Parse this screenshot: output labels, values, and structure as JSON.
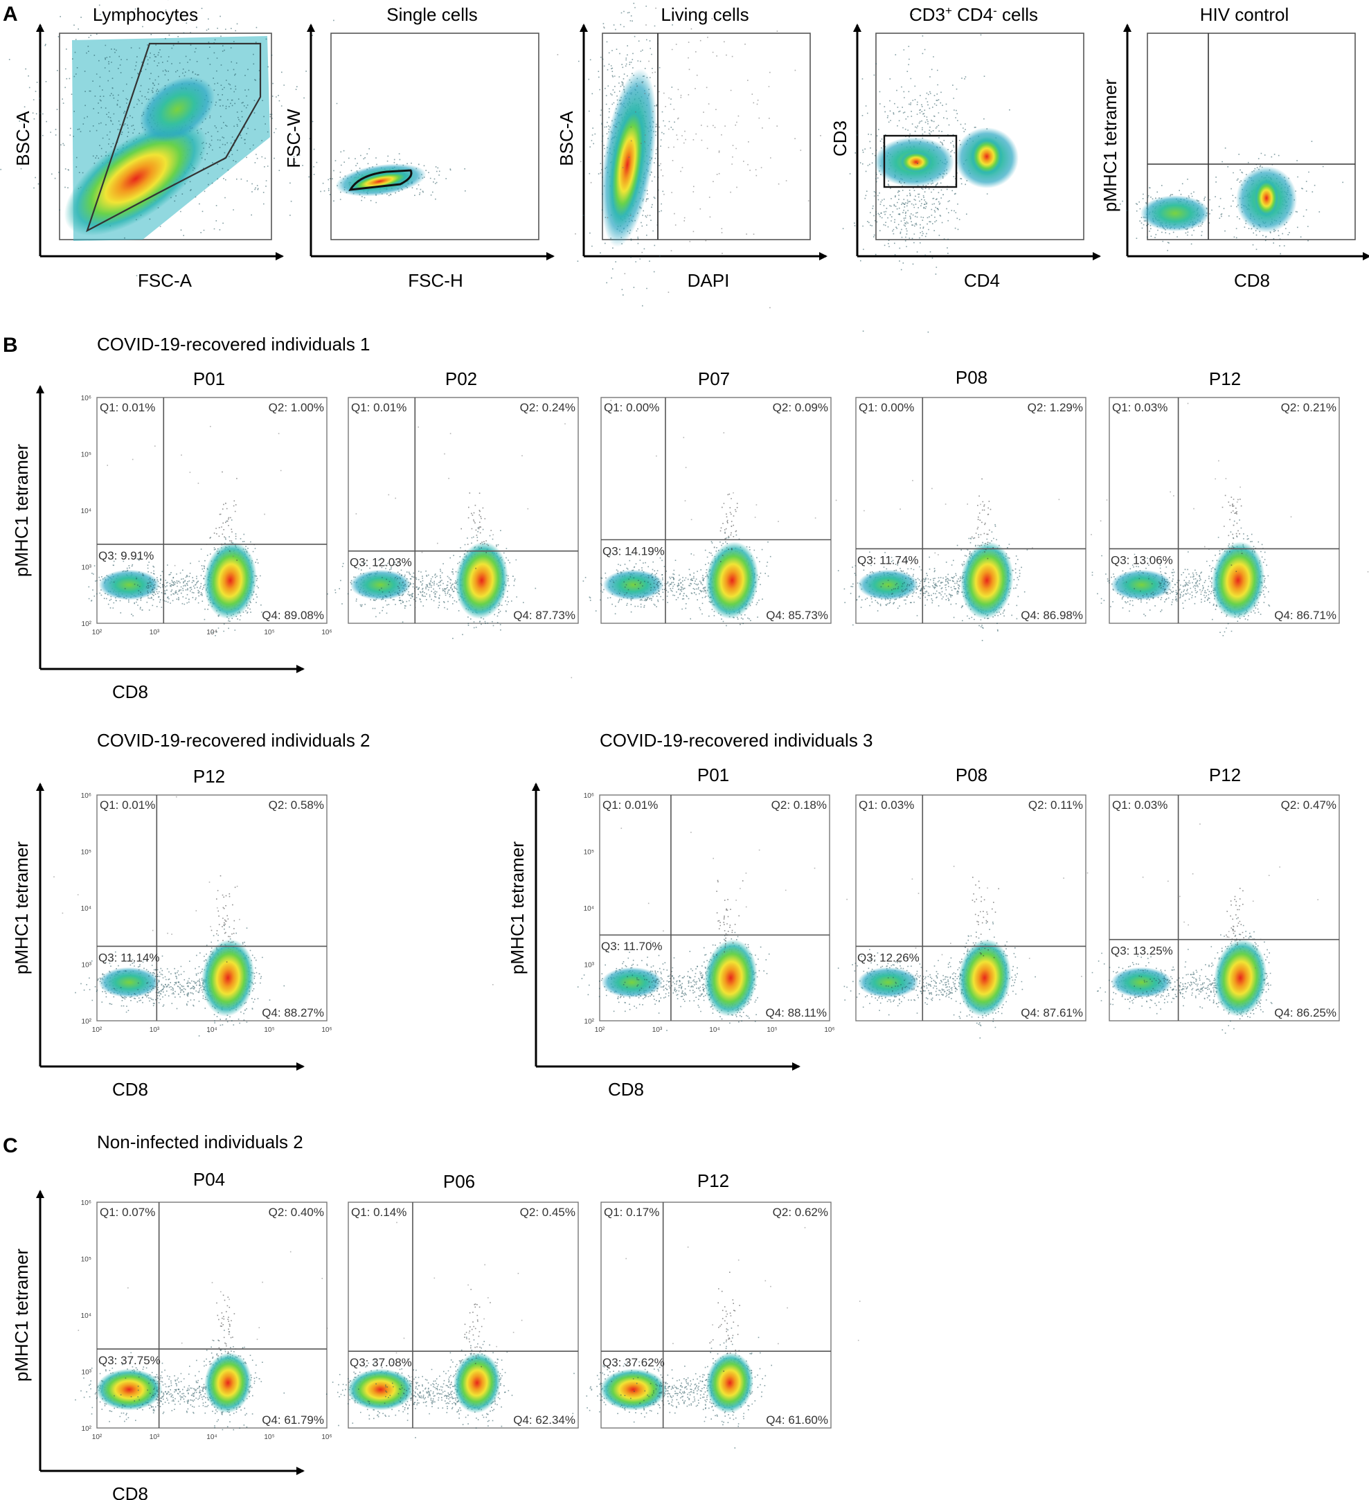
{
  "figure": {
    "panel_letters": [
      "A",
      "B",
      "C"
    ]
  },
  "chart_data": [
    {
      "type": "scatter",
      "subtype": "flow-cytometry-density",
      "panel": "A",
      "id": "lymph",
      "title": "Lymphocytes",
      "xlabel": "FSC-A",
      "ylabel": "BSC-A",
      "gate": "polygon",
      "gate_note": "lymphocyte gate"
    },
    {
      "type": "scatter",
      "subtype": "flow-cytometry-density",
      "panel": "A",
      "id": "single",
      "title": "Single cells",
      "xlabel": "FSC-H",
      "ylabel": "FSC-W",
      "gate": "polygon",
      "gate_note": "singlet gate"
    },
    {
      "type": "scatter",
      "subtype": "flow-cytometry-density",
      "panel": "A",
      "id": "living",
      "title": "Living cells",
      "xlabel": "DAPI",
      "ylabel": "BSC-A",
      "gate": "vertical-line",
      "gate_note": "DAPI negative cells"
    },
    {
      "type": "scatter",
      "subtype": "flow-cytometry-density",
      "panel": "A",
      "id": "cd3cd4",
      "title": "CD3+ CD4- cells",
      "title_main": "CD3",
      "title_sup1": "+",
      "title_mid": " CD4",
      "title_sup2": "-",
      "title_end": " cells",
      "xlabel": "CD4",
      "ylabel": "CD3",
      "gate": "rectangle",
      "gate_note": "CD3 positive CD4 negative gate"
    },
    {
      "type": "scatter",
      "subtype": "flow-cytometry-density",
      "panel": "A",
      "id": "hiv",
      "title": "HIV control",
      "xlabel": "CD8",
      "ylabel": "pMHC1 tetramer",
      "gate": "quadrant"
    },
    {
      "type": "scatter",
      "subtype": "flow-cytometry-quadrant",
      "panel": "B",
      "group": "COVID-19-recovered individuals 1",
      "title": "P01",
      "xlabel": "CD8",
      "ylabel": "pMHC1 tetramer",
      "axis": "log",
      "xlim": [
        100,
        1000000
      ],
      "ylim": [
        100,
        1000000
      ],
      "quadrants": {
        "Q1": "0.01%",
        "Q2": "1.00%",
        "Q3": "9.91%",
        "Q4": "89.08%"
      }
    },
    {
      "type": "scatter",
      "subtype": "flow-cytometry-quadrant",
      "panel": "B",
      "group": "COVID-19-recovered individuals 1",
      "title": "P02",
      "xlabel": "CD8",
      "ylabel": "pMHC1 tetramer",
      "axis": "log",
      "xlim": [
        100,
        1000000
      ],
      "ylim": [
        100,
        1000000
      ],
      "quadrants": {
        "Q1": "0.01%",
        "Q2": "0.24%",
        "Q3": "12.03%",
        "Q4": "87.73%"
      }
    },
    {
      "type": "scatter",
      "subtype": "flow-cytometry-quadrant",
      "panel": "B",
      "group": "COVID-19-recovered individuals 1",
      "title": "P07",
      "xlabel": "CD8",
      "ylabel": "pMHC1 tetramer",
      "axis": "log",
      "xlim": [
        100,
        1000000
      ],
      "ylim": [
        100,
        1000000
      ],
      "quadrants": {
        "Q1": "0.00%",
        "Q2": "0.09%",
        "Q3": "14.19%",
        "Q4": "85.73%"
      }
    },
    {
      "type": "scatter",
      "subtype": "flow-cytometry-quadrant",
      "panel": "B",
      "group": "COVID-19-recovered individuals 1",
      "title": "P08",
      "xlabel": "CD8",
      "ylabel": "pMHC1 tetramer",
      "axis": "log",
      "xlim": [
        100,
        1000000
      ],
      "ylim": [
        100,
        1000000
      ],
      "quadrants": {
        "Q1": "0.00%",
        "Q2": "1.29%",
        "Q3": "11.74%",
        "Q4": "86.98%"
      }
    },
    {
      "type": "scatter",
      "subtype": "flow-cytometry-quadrant",
      "panel": "B",
      "group": "COVID-19-recovered individuals 1",
      "title": "P12",
      "xlabel": "CD8",
      "ylabel": "pMHC1 tetramer",
      "axis": "log",
      "xlim": [
        100,
        1000000
      ],
      "ylim": [
        100,
        1000000
      ],
      "quadrants": {
        "Q1": "0.03%",
        "Q2": "0.21%",
        "Q3": "13.06%",
        "Q4": "86.71%"
      }
    },
    {
      "type": "scatter",
      "subtype": "flow-cytometry-quadrant",
      "panel": "B",
      "group": "COVID-19-recovered individuals 2",
      "title": "P12",
      "xlabel": "CD8",
      "ylabel": "pMHC1 tetramer",
      "axis": "log",
      "xlim": [
        100,
        1000000
      ],
      "ylim": [
        100,
        1000000
      ],
      "quadrants": {
        "Q1": "0.01%",
        "Q2": "0.58%",
        "Q3": "11.14%",
        "Q4": "88.27%"
      }
    },
    {
      "type": "scatter",
      "subtype": "flow-cytometry-quadrant",
      "panel": "B",
      "group": "COVID-19-recovered individuals 3",
      "title": "P01",
      "xlabel": "CD8",
      "ylabel": "pMHC1 tetramer",
      "axis": "log",
      "xlim": [
        100,
        1000000
      ],
      "ylim": [
        100,
        1000000
      ],
      "quadrants": {
        "Q1": "0.01%",
        "Q2": "0.18%",
        "Q3": "11.70%",
        "Q4": "88.11%"
      }
    },
    {
      "type": "scatter",
      "subtype": "flow-cytometry-quadrant",
      "panel": "B",
      "group": "COVID-19-recovered individuals 3",
      "title": "P08",
      "xlabel": "CD8",
      "ylabel": "pMHC1 tetramer",
      "axis": "log",
      "xlim": [
        100,
        1000000
      ],
      "ylim": [
        100,
        1000000
      ],
      "quadrants": {
        "Q1": "0.03%",
        "Q2": "0.11%",
        "Q3": "12.26%",
        "Q4": "87.61%"
      }
    },
    {
      "type": "scatter",
      "subtype": "flow-cytometry-quadrant",
      "panel": "B",
      "group": "COVID-19-recovered individuals 3",
      "title": "P12",
      "xlabel": "CD8",
      "ylabel": "pMHC1 tetramer",
      "axis": "log",
      "xlim": [
        100,
        1000000
      ],
      "ylim": [
        100,
        1000000
      ],
      "quadrants": {
        "Q1": "0.03%",
        "Q2": "0.47%",
        "Q3": "13.25%",
        "Q4": "86.25%"
      }
    },
    {
      "type": "scatter",
      "subtype": "flow-cytometry-quadrant",
      "panel": "C",
      "group": "Non-infected individuals 2",
      "title": "P04",
      "xlabel": "CD8",
      "ylabel": "pMHC1 tetramer",
      "axis": "log",
      "xlim": [
        100,
        1000000
      ],
      "ylim": [
        100,
        1000000
      ],
      "quadrants": {
        "Q1": "0.07%",
        "Q2": "0.40%",
        "Q3": "37.75%",
        "Q4": "61.79%"
      }
    },
    {
      "type": "scatter",
      "subtype": "flow-cytometry-quadrant",
      "panel": "C",
      "group": "Non-infected individuals 2",
      "title": "P06",
      "xlabel": "CD8",
      "ylabel": "pMHC1 tetramer",
      "axis": "log",
      "xlim": [
        100,
        1000000
      ],
      "ylim": [
        100,
        1000000
      ],
      "quadrants": {
        "Q1": "0.14%",
        "Q2": "0.45%",
        "Q3": "37.08%",
        "Q4": "62.34%"
      }
    },
    {
      "type": "scatter",
      "subtype": "flow-cytometry-quadrant",
      "panel": "C",
      "group": "Non-infected individuals 2",
      "title": "P12",
      "xlabel": "CD8",
      "ylabel": "pMHC1 tetramer",
      "axis": "log",
      "xlim": [
        100,
        1000000
      ],
      "ylim": [
        100,
        1000000
      ],
      "quadrants": {
        "Q1": "0.17%",
        "Q2": "0.62%",
        "Q3": "37.62%",
        "Q4": "61.60%"
      }
    }
  ],
  "tick_labels": {
    "x": [
      "10²",
      "10³",
      "10⁴",
      "10⁵",
      "10⁶"
    ],
    "y": [
      "10²",
      "10³",
      "10⁴",
      "10⁵",
      "10⁶"
    ]
  }
}
